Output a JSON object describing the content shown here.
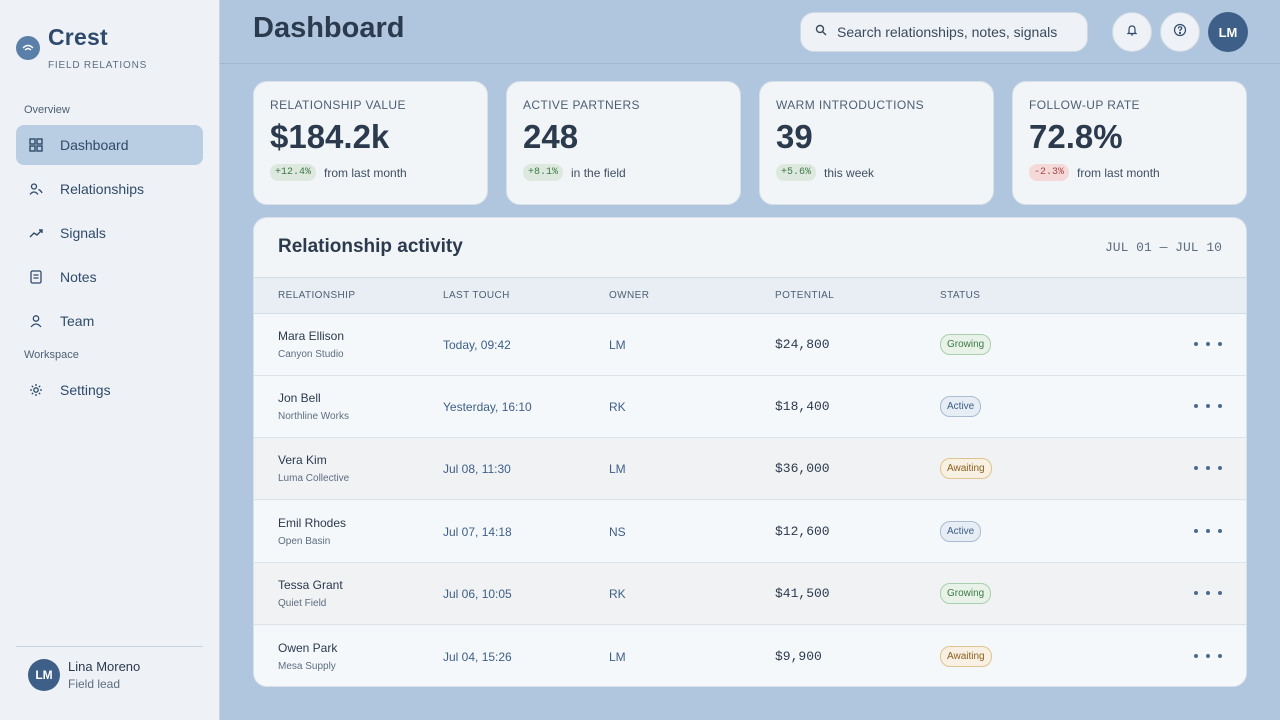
{
  "app": {
    "name": "Crest",
    "subtitle": "FIELD RELATIONS"
  },
  "sidebar": {
    "sections": {
      "overview": "Overview",
      "workspace": "Workspace"
    },
    "items": [
      {
        "label": "Dashboard",
        "icon": "grid-icon",
        "active": true
      },
      {
        "label": "Relationships",
        "icon": "people-icon"
      },
      {
        "label": "Signals",
        "icon": "trend-icon"
      },
      {
        "label": "Notes",
        "icon": "note-icon"
      },
      {
        "label": "Team",
        "icon": "person-icon"
      },
      {
        "label": "Settings",
        "icon": "gear-icon"
      }
    ],
    "user": {
      "initials": "LM",
      "name": "Lina Moreno",
      "role": "Field lead"
    }
  },
  "header": {
    "title": "Dashboard",
    "search_placeholder": "Search relationships, notes, signals",
    "avatar_initials": "LM"
  },
  "stats": [
    {
      "label": "RELATIONSHIP VALUE",
      "value": "$184.2k",
      "delta": "+12.4%",
      "trend": "up",
      "note": "from last month"
    },
    {
      "label": "ACTIVE PARTNERS",
      "value": "248",
      "delta": "+8.1%",
      "trend": "up",
      "note": "in the field"
    },
    {
      "label": "WARM INTRODUCTIONS",
      "value": "39",
      "delta": "+5.6%",
      "trend": "up",
      "note": "this week"
    },
    {
      "label": "FOLLOW-UP RATE",
      "value": "72.8%",
      "delta": "-2.3%",
      "trend": "down",
      "note": "from last month"
    }
  ],
  "activity": {
    "title": "Relationship activity",
    "range": "JUL 01 — JUL 10",
    "columns": [
      "RELATIONSHIP",
      "LAST TOUCH",
      "OWNER",
      "POTENTIAL",
      "STATUS"
    ],
    "rows": [
      {
        "name": "Mara Ellison",
        "org": "Canyon Studio",
        "touch": "Today, 09:42",
        "owner": "LM",
        "potential": "$24,800",
        "status": "Growing"
      },
      {
        "name": "Jon Bell",
        "org": "Northline Works",
        "touch": "Yesterday, 16:10",
        "owner": "RK",
        "potential": "$18,400",
        "status": "Active"
      },
      {
        "name": "Vera Kim",
        "org": "Luma Collective",
        "touch": "Jul 08, 11:30",
        "owner": "LM",
        "potential": "$36,000",
        "status": "Awaiting"
      },
      {
        "name": "Emil Rhodes",
        "org": "Open Basin",
        "touch": "Jul 07, 14:18",
        "owner": "NS",
        "potential": "$12,600",
        "status": "Active"
      },
      {
        "name": "Tessa Grant",
        "org": "Quiet Field",
        "touch": "Jul 06, 10:05",
        "owner": "RK",
        "potential": "$41,500",
        "status": "Growing"
      },
      {
        "name": "Owen Park",
        "org": "Mesa Supply",
        "touch": "Jul 04, 15:26",
        "owner": "LM",
        "potential": "$9,900",
        "status": "Awaiting"
      }
    ]
  }
}
